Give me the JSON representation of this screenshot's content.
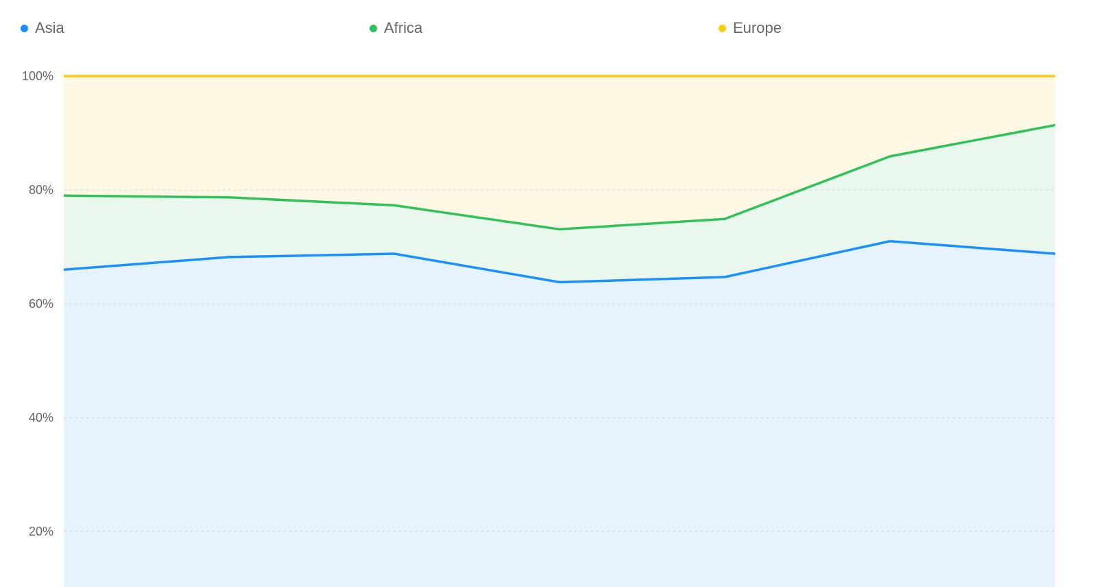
{
  "chart_data": {
    "type": "area",
    "stacked": true,
    "percent": true,
    "title": "",
    "xlabel": "",
    "ylabel": "",
    "ylim": [
      0,
      100
    ],
    "yticks": [
      20,
      40,
      60,
      80,
      100
    ],
    "ytick_labels": [
      "20%",
      "40%",
      "60%",
      "80%",
      "100%"
    ],
    "grid": true,
    "legend_placement": "top",
    "x": [
      1,
      2,
      3,
      4,
      5,
      6,
      7
    ],
    "series": [
      {
        "name": "Asia",
        "color": "#1890ff",
        "fill": "#e6f3fe",
        "values": [
          66.0,
          68.2,
          68.8,
          63.8,
          64.7,
          71.0,
          68.8
        ]
      },
      {
        "name": "Africa",
        "color": "#2fc25b",
        "fill": "#eaf7ec",
        "values": [
          13.0,
          10.5,
          8.5,
          9.3,
          10.2,
          14.9,
          22.6
        ]
      },
      {
        "name": "Europe",
        "color": "#facc14",
        "fill": "#fef8e5",
        "values": [
          21.0,
          21.3,
          22.7,
          26.9,
          25.1,
          14.1,
          8.6
        ]
      }
    ]
  }
}
